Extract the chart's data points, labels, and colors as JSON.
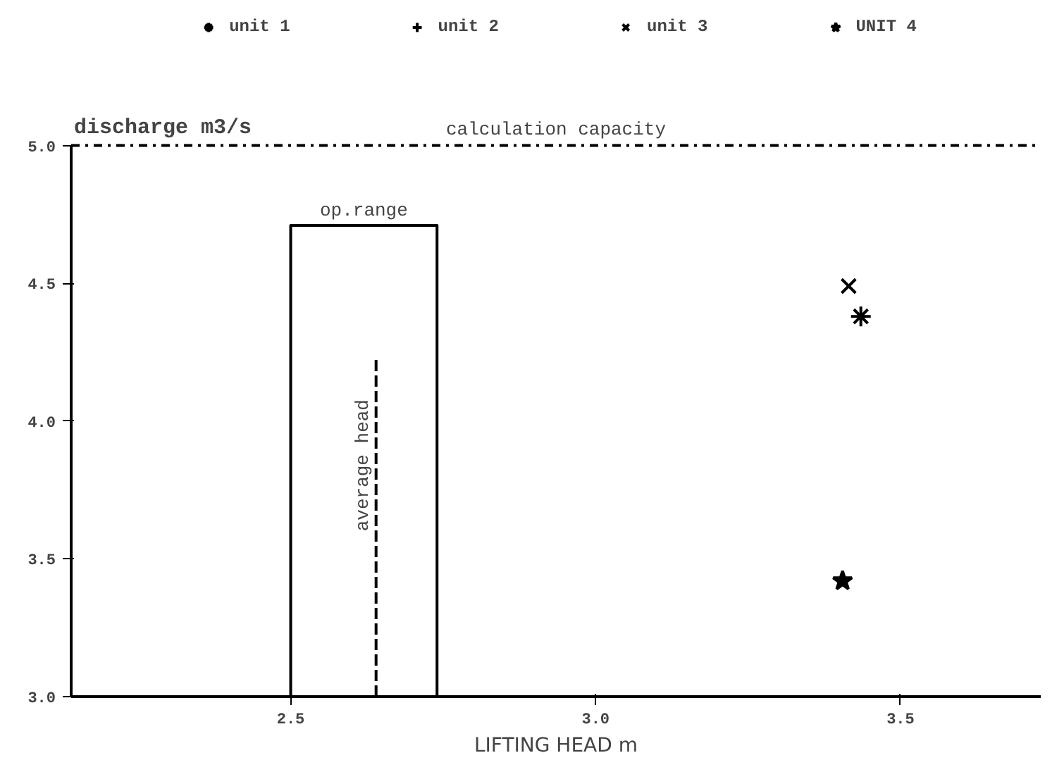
{
  "chart_data": {
    "type": "scatter",
    "xlabel": "LIFTING HEAD m",
    "ylabel": "discharge m3/s",
    "xlim": [
      2.14,
      3.73
    ],
    "ylim": [
      3.0,
      5.0
    ],
    "xticks": [
      2.5,
      {
        "value": 3,
        "label": "3.0"
      },
      3.5
    ],
    "yticks": [
      {
        "value": 3,
        "label": "3.0"
      },
      3.5,
      {
        "value": 4,
        "label": "4.0"
      },
      4.5,
      {
        "value": 5,
        "label": "5.0"
      }
    ],
    "grid": false,
    "legend": "top",
    "series": [
      {
        "name": "unit 1",
        "color": "#000000",
        "x": [
          3.435
        ],
        "values": [
          4.38
        ]
      },
      {
        "name": "unit 2",
        "color": "#000000",
        "marker": "cross"
      },
      {
        "name": "unit 3",
        "color": "#000000",
        "marker": "x",
        "x": [
          3.415
        ],
        "values": [
          4.49
        ]
      },
      {
        "name": "UNIT 4",
        "color": "#000000",
        "marker": "star",
        "x": [
          3.405
        ],
        "values": [
          3.42
        ]
      },
      {
        "type": "line",
        "color": "#000000",
        "line_style": "solid",
        "x": [
          2.5,
          2.5,
          2.74,
          2.74
        ],
        "values": [
          3.0,
          4.71,
          4.71,
          3.0
        ]
      },
      {
        "type": "line",
        "color": "#000000",
        "line_style": "dashed",
        "x": [
          2.64,
          2.64
        ],
        "values": [
          3.0,
          4.23
        ]
      }
    ],
    "ref_lines": [
      {
        "axis": "y",
        "value": 5.0,
        "label": "calculation capacity",
        "line_style": "dashdot"
      }
    ],
    "annotations": [
      {
        "text": "op.range",
        "x": 2.62,
        "y": 4.71
      },
      {
        "text": "average head",
        "x": 2.64,
        "y": 3.6
      }
    ]
  }
}
